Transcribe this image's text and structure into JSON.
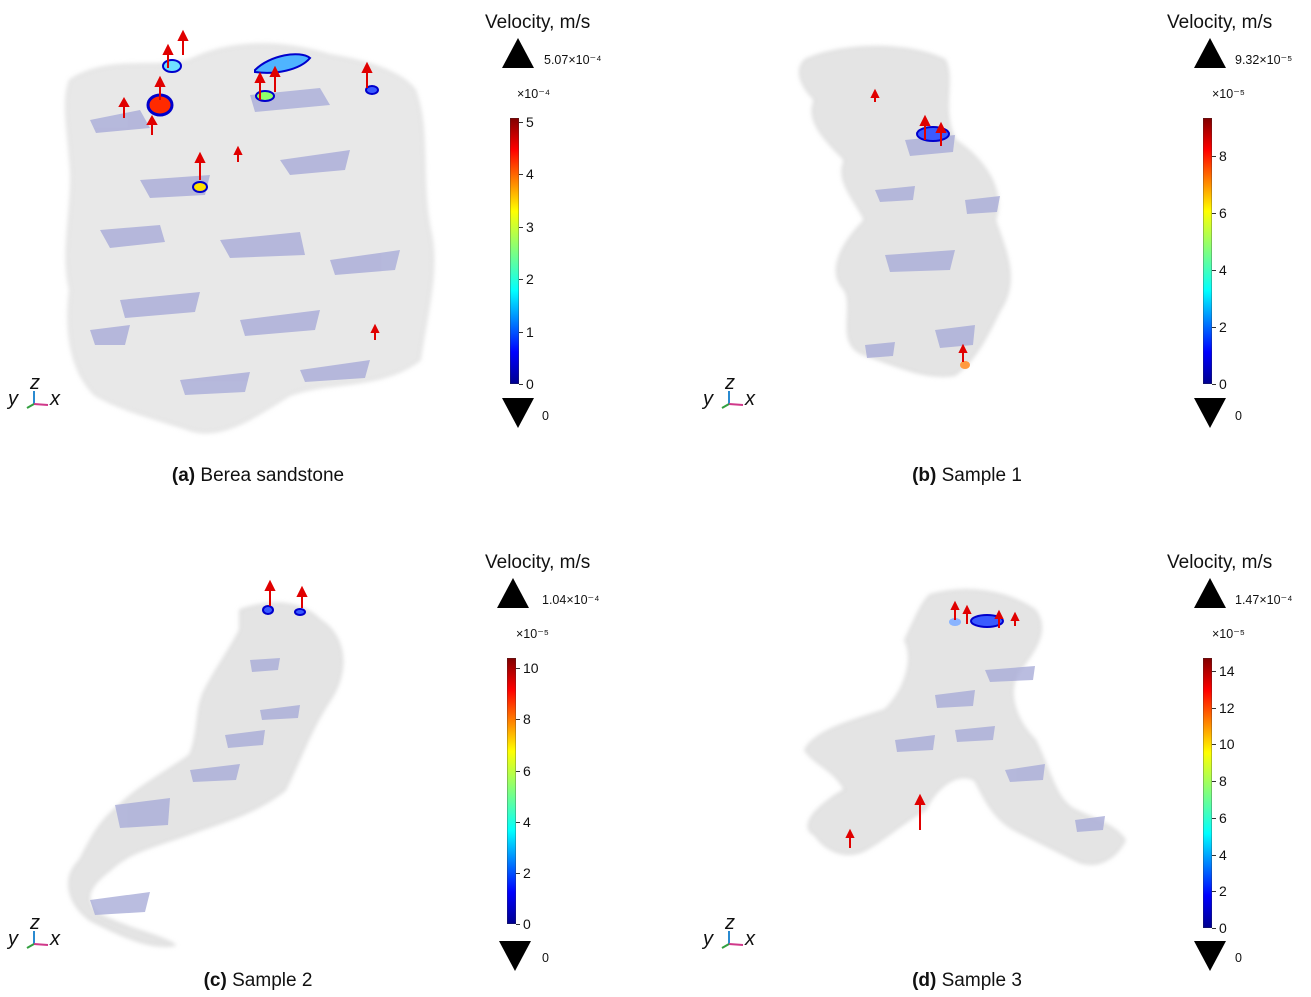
{
  "legend_title": "Velocity, m/s",
  "axes": {
    "z": "z",
    "y": "y",
    "x": "x"
  },
  "panels": [
    {
      "id": "a",
      "caption_letter": "(a)",
      "caption_text": " Berea sandstone",
      "max_value": "5.07×10⁻⁴",
      "min_value": "0",
      "scale_exponent": "×10⁻⁴",
      "ticks": [
        "0",
        "1",
        "2",
        "3",
        "4",
        "5"
      ],
      "tick_max": 5.07
    },
    {
      "id": "b",
      "caption_letter": "(b)",
      "caption_text": " Sample 1",
      "max_value": "9.32×10⁻⁵",
      "min_value": "0",
      "scale_exponent": "×10⁻⁵",
      "ticks": [
        "0",
        "2",
        "4",
        "6",
        "8"
      ],
      "tick_max": 9.32
    },
    {
      "id": "c",
      "caption_letter": "(c)",
      "caption_text": " Sample 2",
      "max_value": "1.04×10⁻⁴",
      "min_value": "0",
      "scale_exponent": "×10⁻⁵",
      "ticks": [
        "0",
        "2",
        "4",
        "6",
        "8",
        "10"
      ],
      "tick_max": 10.4
    },
    {
      "id": "d",
      "caption_letter": "(d)",
      "caption_text": " Sample 3",
      "max_value": "1.47×10⁻⁴",
      "min_value": "0",
      "scale_exponent": "×10⁻⁵",
      "ticks": [
        "0",
        "2",
        "4",
        "6",
        "8",
        "10",
        "12",
        "14"
      ],
      "tick_max": 14.7
    }
  ]
}
